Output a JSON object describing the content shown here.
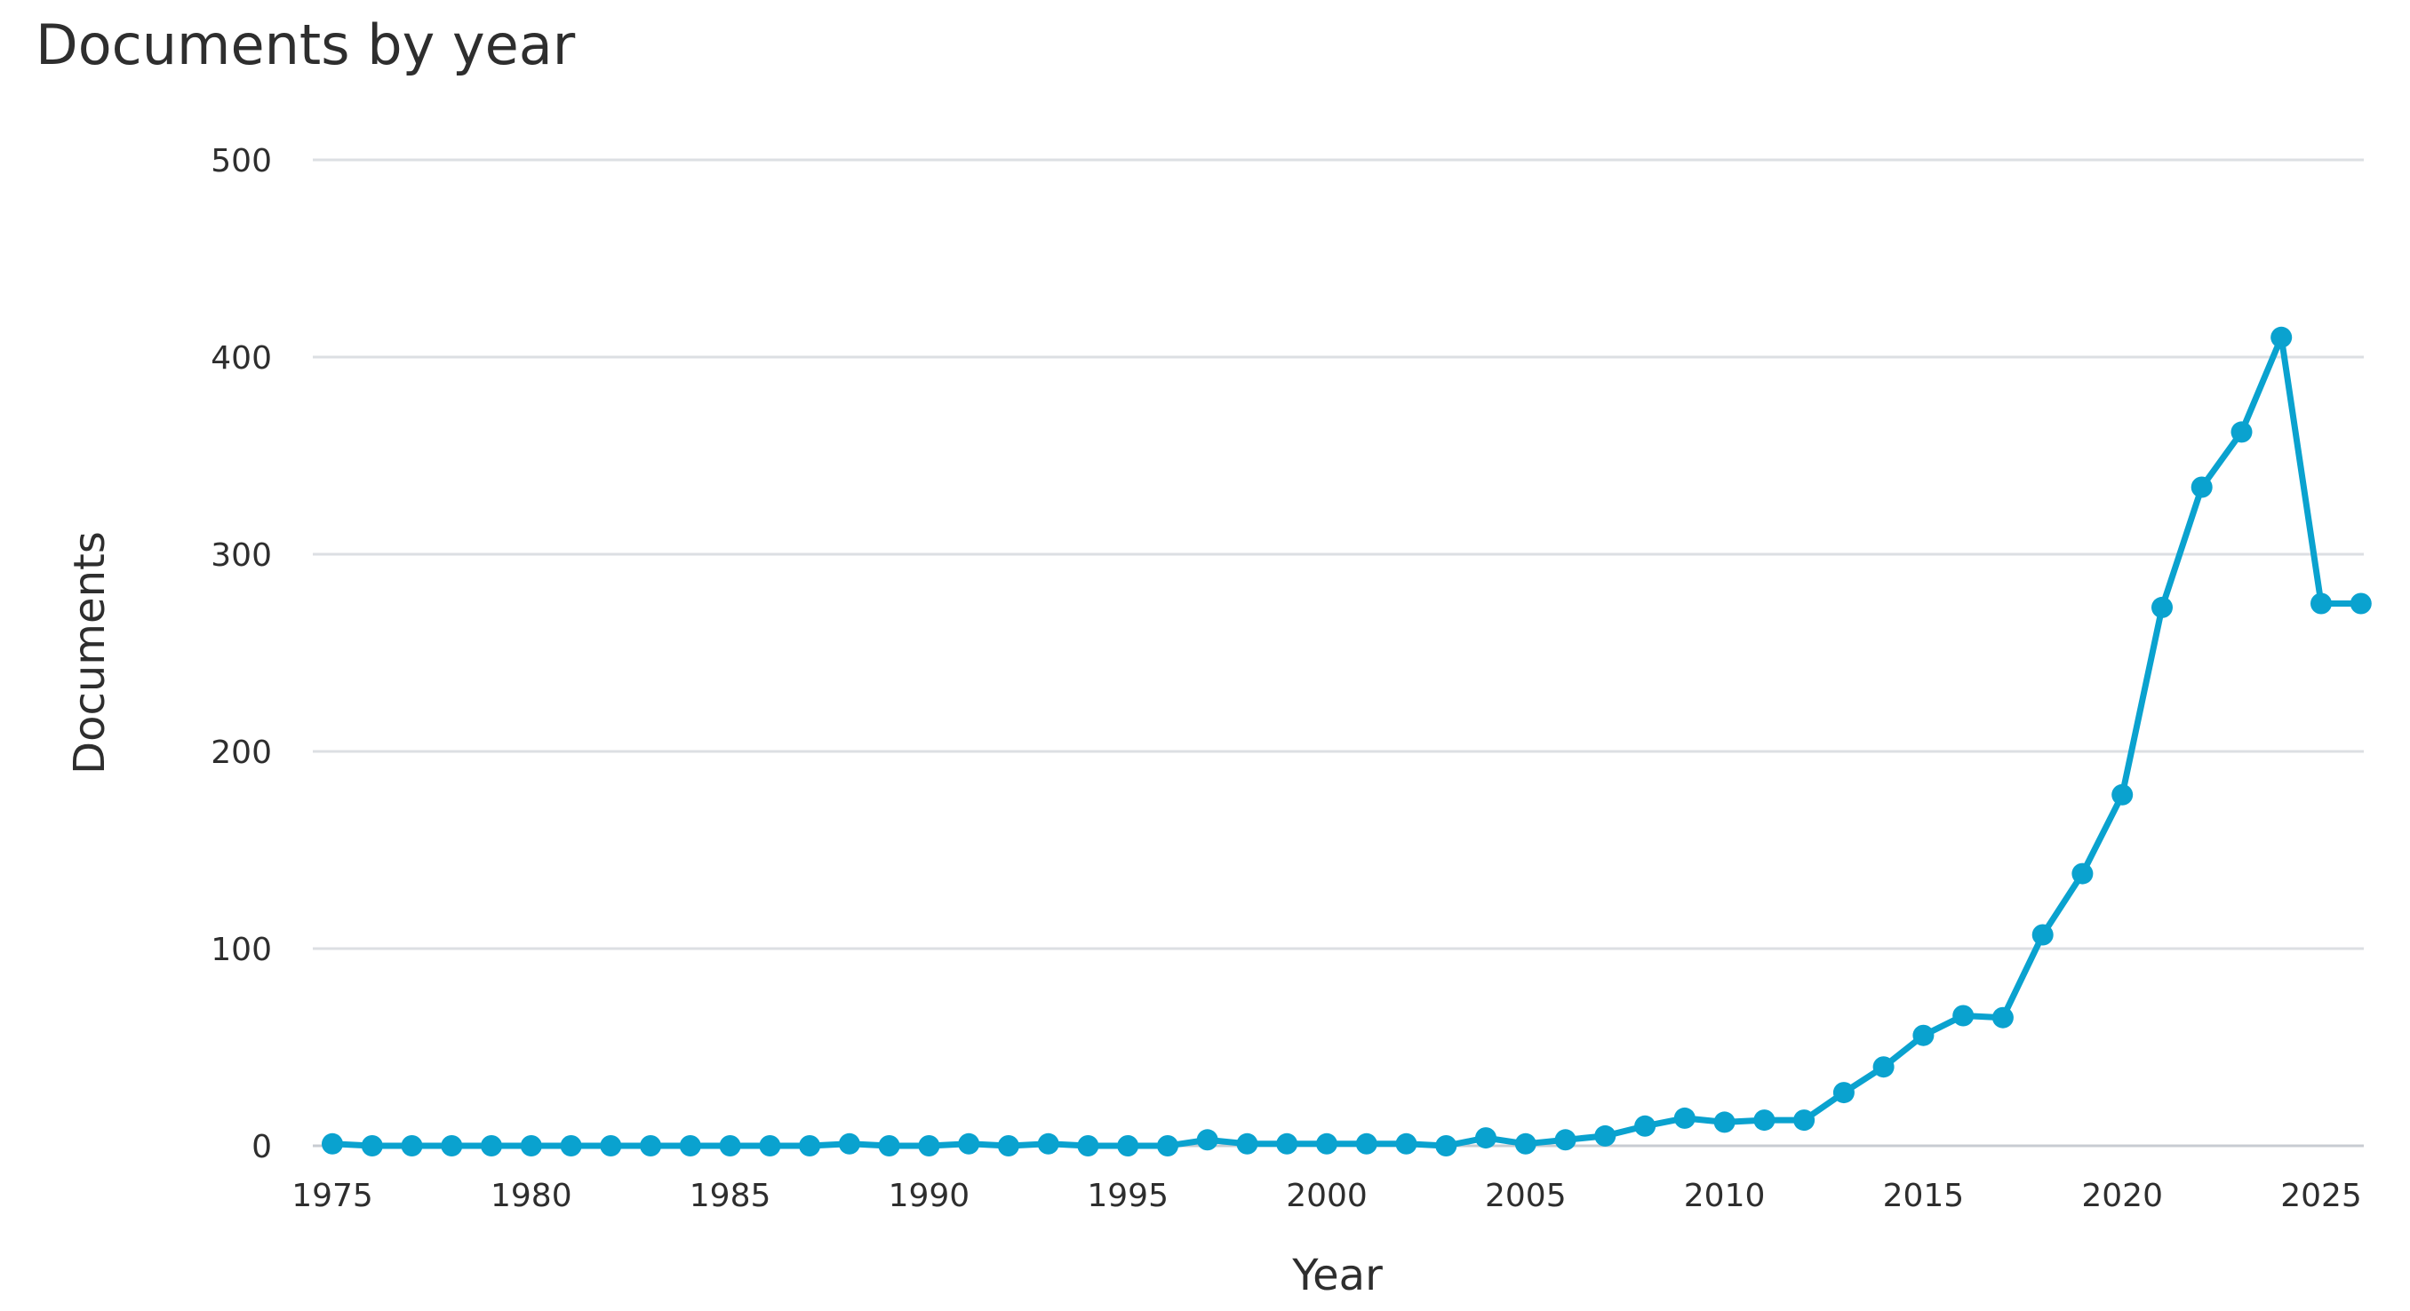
{
  "chart_data": {
    "type": "line",
    "title": "Documents by year",
    "xlabel": "Year",
    "ylabel": "Documents",
    "xlim": [
      1975,
      2026
    ],
    "ylim": [
      0,
      500
    ],
    "yticks": [
      0,
      100,
      200,
      300,
      400,
      500
    ],
    "xticks": [
      1975,
      1980,
      1985,
      1990,
      1995,
      2000,
      2005,
      2010,
      2015,
      2020,
      2025
    ],
    "grid": "horizontal",
    "legend": "none",
    "color": "#0aa2cf",
    "x": [
      1975,
      1976,
      1977,
      1978,
      1979,
      1980,
      1981,
      1982,
      1983,
      1984,
      1985,
      1986,
      1987,
      1988,
      1989,
      1990,
      1991,
      1992,
      1993,
      1994,
      1995,
      1996,
      1997,
      1998,
      1999,
      2000,
      2001,
      2002,
      2003,
      2004,
      2005,
      2006,
      2007,
      2008,
      2009,
      2010,
      2011,
      2012,
      2013,
      2014,
      2015,
      2016,
      2017,
      2018,
      2019,
      2020,
      2021,
      2022,
      2023,
      2024,
      2025,
      2026
    ],
    "values": [
      1,
      0,
      0,
      0,
      0,
      0,
      0,
      0,
      0,
      0,
      0,
      0,
      0,
      1,
      0,
      0,
      1,
      0,
      1,
      0,
      0,
      0,
      3,
      1,
      1,
      1,
      1,
      1,
      0,
      4,
      1,
      3,
      5,
      10,
      14,
      12,
      13,
      13,
      27,
      40,
      56,
      66,
      65,
      107,
      138,
      178,
      273,
      334,
      362,
      410,
      275,
      275
    ]
  }
}
